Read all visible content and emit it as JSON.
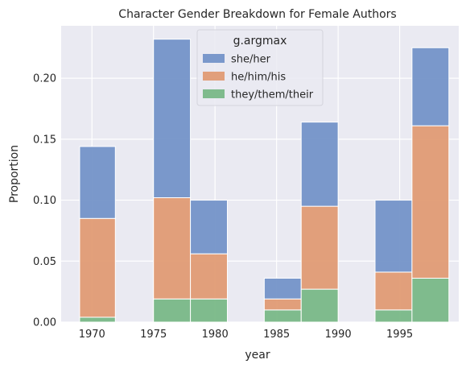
{
  "chart_data": {
    "type": "bar",
    "stacked": true,
    "title": "Character Gender Breakdown for Female Authors",
    "xlabel": "year",
    "ylabel": "Proportion",
    "xlim": [
      1967.5,
      1999.8
    ],
    "ylim": [
      0,
      0.243
    ],
    "xticks": [
      1970,
      1975,
      1980,
      1985,
      1990,
      1995
    ],
    "yticks": [
      0.0,
      0.05,
      0.1,
      0.15,
      0.2
    ],
    "ytick_labels": [
      "0.00",
      "0.05",
      "0.10",
      "0.15",
      "0.20"
    ],
    "grid": true,
    "legend": {
      "title": "g.argmax",
      "placement": "top-center"
    },
    "bins": [
      {
        "x0": 1969.0,
        "x1": 1971.9
      },
      {
        "x0": 1975.0,
        "x1": 1978.0
      },
      {
        "x0": 1978.0,
        "x1": 1981.0
      },
      {
        "x0": 1984.0,
        "x1": 1987.0
      },
      {
        "x0": 1987.0,
        "x1": 1990.0
      },
      {
        "x0": 1993.0,
        "x1": 1996.0
      },
      {
        "x0": 1996.0,
        "x1": 1999.0
      }
    ],
    "series": [
      {
        "name": "they/them/their",
        "color": "#79b887",
        "values": [
          0.004,
          0.019,
          0.019,
          0.01,
          0.027,
          0.01,
          0.036
        ]
      },
      {
        "name": "he/him/his",
        "color": "#e09b74",
        "values": [
          0.081,
          0.083,
          0.037,
          0.009,
          0.068,
          0.031,
          0.125
        ]
      },
      {
        "name": "she/her",
        "color": "#7494c8",
        "values": [
          0.059,
          0.13,
          0.044,
          0.017,
          0.069,
          0.059,
          0.064
        ]
      }
    ],
    "legend_order": [
      "she/her",
      "he/him/his",
      "they/them/their"
    ]
  }
}
